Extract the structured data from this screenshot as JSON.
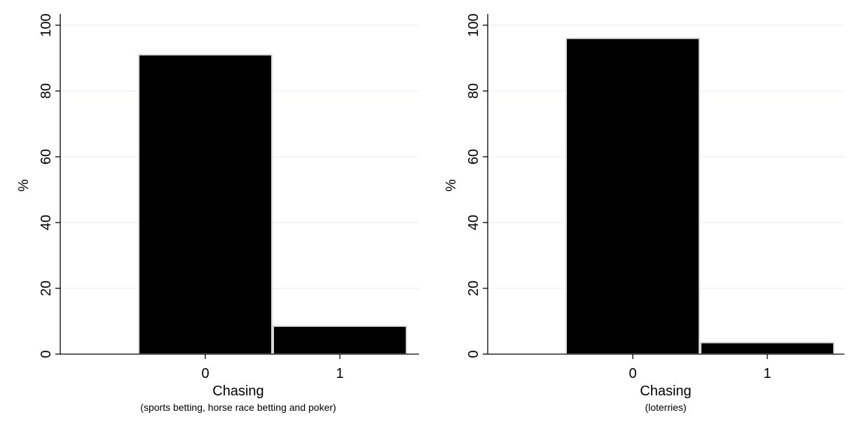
{
  "chart_data": [
    {
      "type": "bar",
      "categories": [
        "0",
        "1"
      ],
      "values": [
        91,
        8.5
      ],
      "ylabel": "%",
      "xlabel": "Chasing",
      "xsublabel": "(sports betting, horse race betting and poker)",
      "ylim": [
        0,
        100
      ],
      "yticks": [
        0,
        20,
        40,
        60,
        80,
        100
      ],
      "grid": true,
      "bar_color": "#000000"
    },
    {
      "type": "bar",
      "categories": [
        "0",
        "1"
      ],
      "values": [
        96,
        3.5
      ],
      "ylabel": "%",
      "xlabel": "Chasing",
      "xsublabel": "(loterries)",
      "ylim": [
        0,
        100
      ],
      "yticks": [
        0,
        20,
        40,
        60,
        80,
        100
      ],
      "grid": true,
      "bar_color": "#000000"
    }
  ]
}
